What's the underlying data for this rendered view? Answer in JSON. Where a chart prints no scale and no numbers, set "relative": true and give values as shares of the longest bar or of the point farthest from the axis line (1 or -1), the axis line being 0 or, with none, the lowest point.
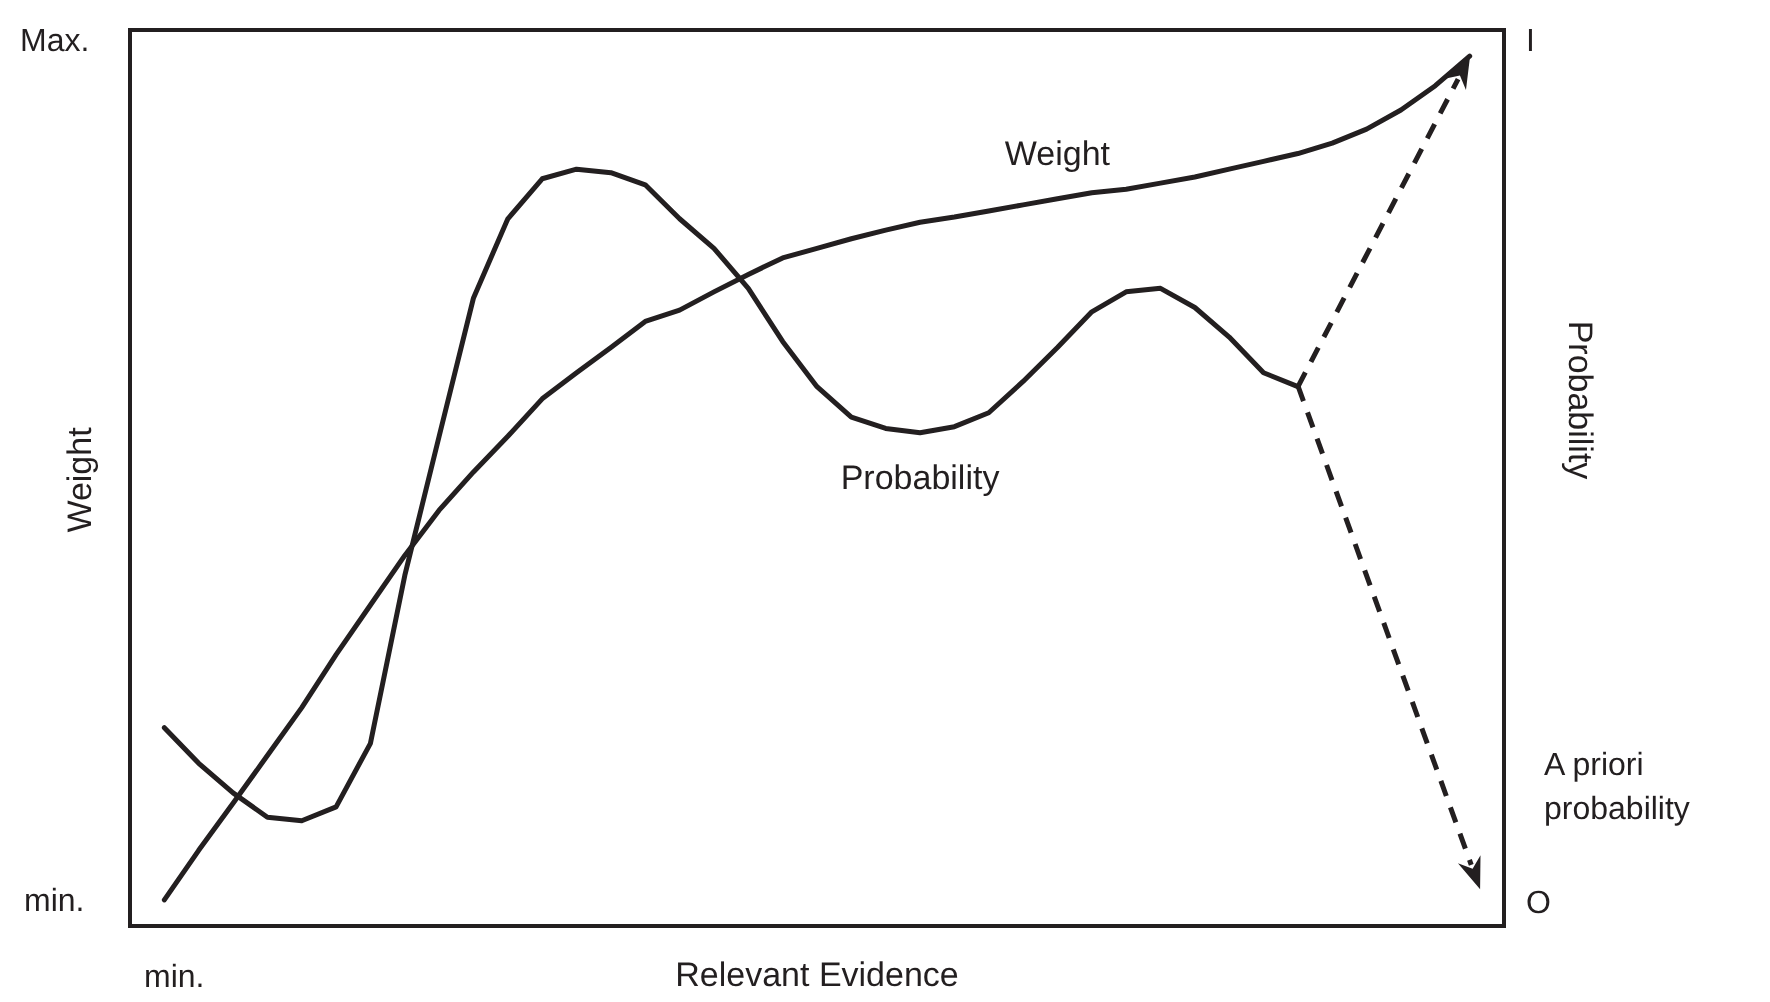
{
  "chart_data": {
    "type": "line",
    "relative": true,
    "xlabel": "Relevant Evidence",
    "ylabel": "Weight",
    "y2label": "Probability",
    "annotations": [
      "Max.",
      "min.",
      "I",
      "O",
      "min.",
      "A priori\nprobability"
    ],
    "categories": [
      null,
      null,
      null,
      null,
      null,
      null,
      null,
      null,
      null,
      null,
      null,
      null,
      null,
      null,
      null,
      null,
      null,
      null,
      null,
      null,
      null,
      null,
      null,
      null,
      null,
      null,
      null,
      null,
      null,
      null,
      null,
      null,
      null,
      null,
      null,
      null,
      null,
      null,
      null,
      null,
      null
    ],
    "grid": false,
    "legend": false,
    "marker": "none",
    "line_style": "solid",
    "series": [
      {
        "name": "Weight",
        "color": "#231f20",
        "values": [
          null,
          0.03,
          0.087,
          0.141,
          0.196,
          0.251,
          0.312,
          0.369,
          0.426,
          0.478,
          0.522,
          0.563,
          0.606,
          0.636,
          0.665,
          0.695,
          0.708,
          0.729,
          0.749,
          0.768,
          0.779,
          0.79,
          0.8,
          0.809,
          0.815,
          0.822,
          0.829,
          0.836,
          0.843,
          0.847,
          0.854,
          0.861,
          0.87,
          0.879,
          0.888,
          0.9,
          0.916,
          0.938,
          0.966,
          1.0,
          null
        ]
      },
      {
        "name": "Probability",
        "color": "#231f20",
        "values": [
          null,
          0.228,
          0.187,
          0.153,
          0.125,
          0.121,
          0.137,
          0.21,
          0.403,
          0.563,
          0.722,
          0.813,
          0.859,
          0.87,
          0.866,
          0.852,
          0.813,
          0.779,
          0.733,
          0.672,
          0.62,
          0.585,
          0.572,
          0.567,
          0.574,
          0.59,
          0.626,
          0.665,
          0.706,
          0.729,
          0.733,
          0.711,
          0.677,
          0.636,
          0.62,
          null,
          null,
          null,
          null,
          null,
          null
        ]
      }
    ]
  }
}
